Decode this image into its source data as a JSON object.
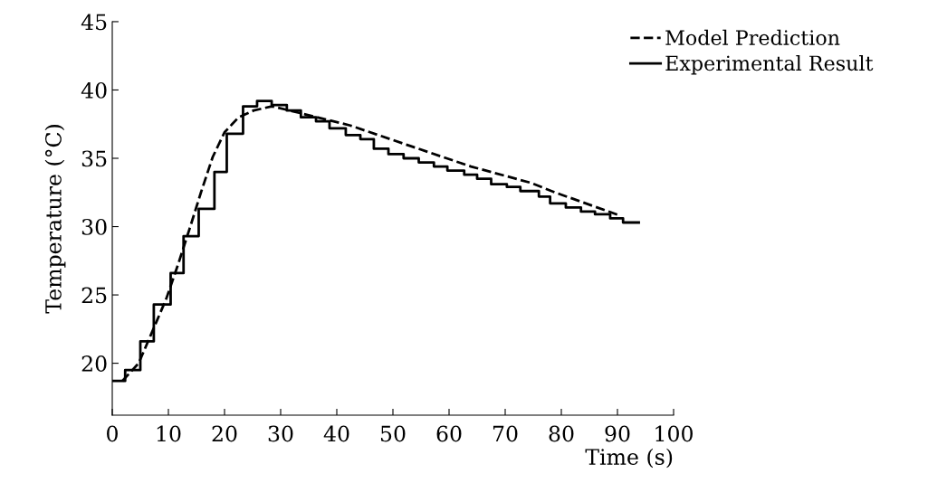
{
  "chart_data": {
    "type": "line",
    "xlabel": "Time (s)",
    "ylabel": "Temperature (°C)",
    "xlim": [
      0,
      100
    ],
    "xticks": [
      0,
      10,
      20,
      30,
      40,
      50,
      60,
      70,
      80,
      90,
      100
    ],
    "ylim": [
      16.2,
      45
    ],
    "yticks": [
      20,
      25,
      30,
      35,
      40,
      45
    ],
    "grid": false,
    "legend": "top right",
    "series": [
      {
        "name": "Model Prediction",
        "line_style": "dashed",
        "color": "#000000",
        "x": [
          1.8,
          4.7,
          6.9,
          9.6,
          11.7,
          13.9,
          15.8,
          17.9,
          20.0,
          22.5,
          25.2,
          28.4,
          31.6,
          42.4,
          53.1,
          63.9,
          74.6,
          78.9,
          90.5
        ],
        "values": [
          18.7,
          20.0,
          22.1,
          24.7,
          27.2,
          30.0,
          32.5,
          35.1,
          36.9,
          38.0,
          38.5,
          38.8,
          38.5,
          37.4,
          35.9,
          34.4,
          33.2,
          32.5,
          30.8
        ]
      },
      {
        "name": "Experimental Result",
        "type": "step",
        "line_style": "solid",
        "color": "#000000",
        "x": [
          0,
          2.3,
          5.0,
          7.4,
          10.4,
          12.7,
          15.4,
          18.2,
          20.4,
          23.3,
          25.8,
          28.4,
          31.1,
          33.6,
          36.3,
          38.7,
          41.6,
          44.2,
          46.6,
          49.2,
          51.9,
          54.6,
          57.3,
          59.7,
          62.7,
          65.0,
          67.5,
          70.3,
          72.7,
          76.0,
          78.0,
          80.8,
          83.5,
          86.0,
          88.7,
          91.0,
          93.8
        ],
        "values": [
          18.7,
          19.5,
          21.6,
          24.3,
          26.6,
          29.3,
          31.3,
          34.0,
          36.8,
          38.8,
          39.2,
          38.9,
          38.5,
          38.0,
          37.7,
          37.2,
          36.7,
          36.4,
          35.7,
          35.3,
          35.0,
          34.7,
          34.4,
          34.1,
          33.8,
          33.5,
          33.1,
          32.9,
          32.6,
          32.2,
          31.7,
          31.4,
          31.1,
          30.9,
          30.6,
          30.3,
          30.3
        ]
      }
    ]
  }
}
